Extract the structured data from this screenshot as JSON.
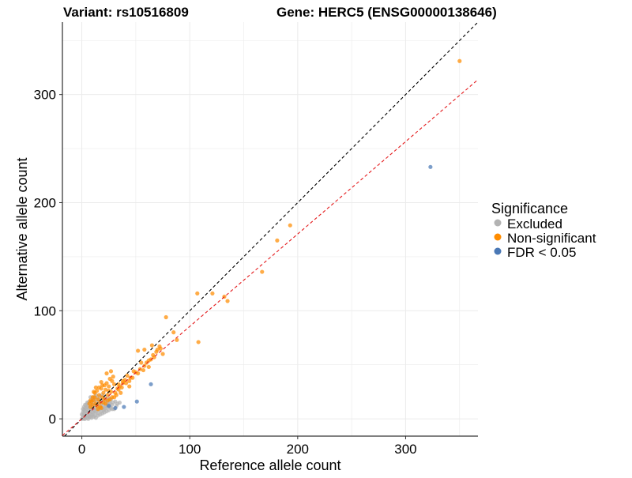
{
  "chart_data": {
    "type": "scatter",
    "title_left": "Variant: rs10516809",
    "title_right": "Gene: HERC5 (ENSG00000138646)",
    "xlabel": "Reference allele count",
    "ylabel": "Alternative allele count",
    "xlim": [
      -18,
      367
    ],
    "ylim": [
      -16,
      367
    ],
    "x_ticks": [
      0,
      100,
      200,
      300
    ],
    "y_ticks": [
      0,
      100,
      200,
      300
    ],
    "grid": true,
    "legend": {
      "title": "Significance",
      "placement": "right",
      "entries": [
        {
          "label": "Excluded",
          "color": "#b3b3b3"
        },
        {
          "label": "Non-significant",
          "color": "#ff8c00"
        },
        {
          "label": "FDR < 0.05",
          "color": "#4a78b5"
        }
      ]
    },
    "reference_lines": [
      {
        "slope": 1.0,
        "intercept": 0,
        "color": "#000000",
        "style": "dashed"
      },
      {
        "slope": 0.855,
        "intercept": 0,
        "color": "#e41a1c",
        "style": "dashed"
      }
    ],
    "series": [
      {
        "name": "Excluded",
        "color": "#b3b3b3",
        "points": [
          [
            0,
            0
          ],
          [
            1,
            1
          ],
          [
            2,
            0
          ],
          [
            1,
            3
          ],
          [
            3,
            2
          ],
          [
            2,
            5
          ],
          [
            4,
            4
          ],
          [
            3,
            7
          ],
          [
            5,
            1
          ],
          [
            5,
            6
          ],
          [
            6,
            3
          ],
          [
            6,
            8
          ],
          [
            7,
            5
          ],
          [
            7,
            10
          ],
          [
            8,
            2
          ],
          [
            8,
            7
          ],
          [
            9,
            9
          ],
          [
            9,
            12
          ],
          [
            10,
            4
          ],
          [
            10,
            6
          ],
          [
            10,
            11
          ],
          [
            11,
            8
          ],
          [
            11,
            14
          ],
          [
            12,
            3
          ],
          [
            12,
            10
          ],
          [
            13,
            6
          ],
          [
            13,
            13
          ],
          [
            14,
            9
          ],
          [
            14,
            16
          ],
          [
            15,
            5
          ],
          [
            15,
            12
          ],
          [
            16,
            8
          ],
          [
            16,
            15
          ],
          [
            17,
            11
          ],
          [
            18,
            7
          ],
          [
            18,
            14
          ],
          [
            19,
            10
          ],
          [
            20,
            13
          ],
          [
            21,
            9
          ],
          [
            22,
            12
          ],
          [
            23,
            15
          ],
          [
            24,
            11
          ],
          [
            25,
            8
          ],
          [
            26,
            14
          ],
          [
            27,
            10
          ],
          [
            28,
            13
          ],
          [
            30,
            9
          ],
          [
            32,
            12
          ],
          [
            4,
            9
          ],
          [
            6,
            12
          ],
          [
            8,
            14
          ],
          [
            10,
            17
          ],
          [
            12,
            18
          ],
          [
            5,
            11
          ],
          [
            3,
            10
          ],
          [
            2,
            8
          ],
          [
            7,
            2
          ],
          [
            9,
            1
          ],
          [
            11,
            2
          ],
          [
            13,
            1
          ],
          [
            15,
            3
          ],
          [
            17,
            4
          ],
          [
            19,
            5
          ],
          [
            21,
            6
          ],
          [
            23,
            7
          ],
          [
            14,
            20
          ],
          [
            16,
            18
          ],
          [
            18,
            17
          ],
          [
            20,
            16
          ],
          [
            22,
            18
          ],
          [
            24,
            17
          ],
          [
            26,
            16
          ],
          [
            8,
            20
          ],
          [
            10,
            19
          ],
          [
            6,
            15
          ],
          [
            4,
            13
          ],
          [
            1,
            6
          ],
          [
            0,
            4
          ],
          [
            3,
            0
          ],
          [
            6,
            0
          ],
          [
            9,
            4
          ],
          [
            12,
            7
          ],
          [
            15,
            9
          ],
          [
            18,
            11
          ],
          [
            20,
            8
          ],
          [
            22,
            10
          ],
          [
            24,
            13
          ],
          [
            26,
            11
          ],
          [
            28,
            9
          ],
          [
            29,
            15
          ],
          [
            31,
            16
          ],
          [
            33,
            14
          ],
          [
            35,
            15
          ],
          [
            1,
            9
          ],
          [
            2,
            11
          ],
          [
            3,
            13
          ],
          [
            5,
            15
          ],
          [
            7,
            16
          ],
          [
            11,
            20
          ],
          [
            13,
            22
          ],
          [
            17,
            21
          ],
          [
            19,
            22
          ],
          [
            21,
            20
          ],
          [
            25,
            19
          ],
          [
            27,
            18
          ]
        ]
      },
      {
        "name": "Non-significant",
        "color": "#ff8c00",
        "points": [
          [
            350,
            331
          ],
          [
            193,
            179
          ],
          [
            181,
            165
          ],
          [
            107,
            116
          ],
          [
            121,
            116
          ],
          [
            167,
            136
          ],
          [
            135,
            109
          ],
          [
            132,
            113
          ],
          [
            78,
            94
          ],
          [
            108,
            71
          ],
          [
            85,
            80
          ],
          [
            88,
            73
          ],
          [
            72,
            67
          ],
          [
            70,
            64
          ],
          [
            75,
            60
          ],
          [
            67,
            57
          ],
          [
            64,
            55
          ],
          [
            60,
            52
          ],
          [
            62,
            48
          ],
          [
            55,
            52
          ],
          [
            57,
            45
          ],
          [
            52,
            42
          ],
          [
            48,
            44
          ],
          [
            45,
            38
          ],
          [
            42,
            40
          ],
          [
            40,
            36
          ],
          [
            38,
            33
          ],
          [
            35,
            30
          ],
          [
            33,
            28
          ],
          [
            30,
            32
          ],
          [
            28,
            35
          ],
          [
            27,
            25
          ],
          [
            25,
            30
          ],
          [
            24,
            22
          ],
          [
            22,
            27
          ],
          [
            21,
            18
          ],
          [
            20,
            24
          ],
          [
            19,
            20
          ],
          [
            18,
            28
          ],
          [
            17,
            15
          ],
          [
            16,
            22
          ],
          [
            15,
            18
          ],
          [
            14,
            26
          ],
          [
            13,
            14
          ],
          [
            12,
            20
          ],
          [
            11,
            17
          ],
          [
            10,
            13
          ],
          [
            9,
            16
          ],
          [
            8,
            11
          ],
          [
            7,
            14
          ],
          [
            26,
            37
          ],
          [
            29,
            39
          ],
          [
            23,
            33
          ],
          [
            19,
            31
          ],
          [
            16,
            29
          ],
          [
            12,
            24
          ],
          [
            10,
            20
          ],
          [
            8,
            17
          ],
          [
            14,
            12
          ],
          [
            17,
            11
          ],
          [
            20,
            15
          ],
          [
            24,
            17
          ],
          [
            28,
            20
          ],
          [
            31,
            24
          ],
          [
            34,
            27
          ],
          [
            37,
            29
          ],
          [
            41,
            33
          ],
          [
            44,
            35
          ],
          [
            47,
            38
          ],
          [
            50,
            43
          ],
          [
            54,
            46
          ],
          [
            58,
            49
          ],
          [
            62,
            54
          ],
          [
            66,
            59
          ],
          [
            69,
            62
          ],
          [
            73,
            65
          ],
          [
            36,
            24
          ],
          [
            32,
            22
          ],
          [
            26,
            18
          ],
          [
            22,
            14
          ],
          [
            18,
            10
          ],
          [
            15,
            9
          ],
          [
            44,
            30
          ],
          [
            52,
            63
          ],
          [
            58,
            64
          ],
          [
            65,
            68
          ],
          [
            30,
            20
          ],
          [
            34,
            32
          ],
          [
            38,
            35
          ],
          [
            21,
            31
          ],
          [
            25,
            26
          ],
          [
            18,
            34
          ],
          [
            13,
            29
          ],
          [
            11,
            25
          ],
          [
            23,
            42
          ],
          [
            27,
            44
          ]
        ]
      },
      {
        "name": "FDR < 0.05",
        "color": "#4a78b5",
        "points": [
          [
            323,
            233
          ],
          [
            64,
            32
          ],
          [
            51,
            16
          ],
          [
            39,
            11
          ],
          [
            31,
            10
          ],
          [
            25,
            12
          ]
        ]
      }
    ]
  }
}
